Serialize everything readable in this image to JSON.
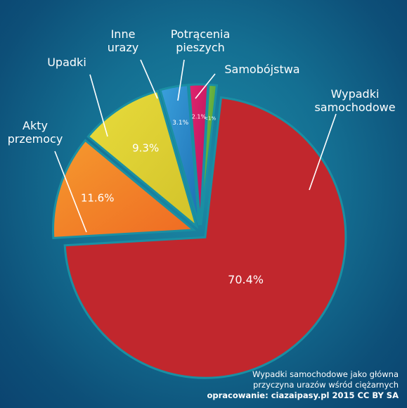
{
  "chart_data": {
    "type": "pie",
    "slices": [
      {
        "label": "Wypadki samochodowe",
        "label_lines": [
          "Wypadki",
          "samochodowe"
        ],
        "value": 70.4,
        "value_label": "70.4%",
        "color": "#c1272d",
        "color2": "#c1272d"
      },
      {
        "label": "Akty przemocy",
        "label_lines": [
          "Akty",
          "przemocy"
        ],
        "value": 11.6,
        "value_label": "11.6%",
        "color": "#f59a2e",
        "color2": "#ef6a23"
      },
      {
        "label": "Upadki",
        "label_lines": [
          "Upadki"
        ],
        "value": 9.3,
        "value_label": "9.3%",
        "color": "#e8dc3c",
        "color2": "#d2c22a"
      },
      {
        "label": "Inne urazy",
        "label_lines": [
          "Inne",
          "urazy"
        ],
        "value": 3.1,
        "value_label": "3.1%",
        "color": "#3aa0dc",
        "color2": "#1d6fb3"
      },
      {
        "label": "Potrącenia pieszych",
        "label_lines": [
          "Potrącenia",
          "pieszych"
        ],
        "value": 2.1,
        "value_label": "2.1%",
        "color": "#e0256e",
        "color2": "#b8125a"
      },
      {
        "label": "Samobójstwa",
        "label_lines": [
          "Samobójstwa"
        ],
        "value": 0.9,
        "value_label": "<1%",
        "color": "#7ec44a",
        "color2": "#3f8f2e"
      }
    ]
  },
  "footer": {
    "line1": "Wypadki samochodowe jako główna",
    "line2": "przyczyna urazów wśród ciężarnych",
    "credit_prefix": "opracowanie:",
    "credit_site": "ciazaipasy.pl 2015 CC BY SA"
  },
  "colors": {
    "background": "#146f92",
    "separator": "#1a8fa3"
  }
}
